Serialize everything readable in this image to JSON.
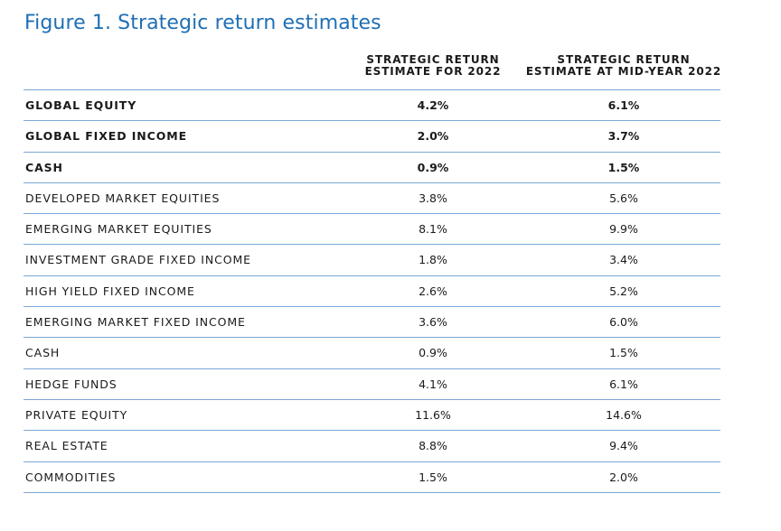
{
  "title": "Figure 1. Strategic return estimates",
  "columns": [
    {
      "line1": "STRATEGIC RETURN",
      "line2": "ESTIMATE FOR 2022"
    },
    {
      "line1": "STRATEGIC RETURN",
      "line2": "ESTIMATE AT MID-YEAR 2022"
    }
  ],
  "rows": [
    {
      "label": "GLOBAL EQUITY",
      "v1": "4.2%",
      "v2": "6.1%",
      "bold": true
    },
    {
      "label": "GLOBAL FIXED INCOME",
      "v1": "2.0%",
      "v2": "3.7%",
      "bold": true
    },
    {
      "label": "CASH",
      "v1": "0.9%",
      "v2": "1.5%",
      "bold": true
    },
    {
      "label": "DEVELOPED MARKET EQUITIES",
      "v1": "3.8%",
      "v2": "5.6%",
      "bold": false
    },
    {
      "label": "EMERGING MARKET EQUITIES",
      "v1": "8.1%",
      "v2": "9.9%",
      "bold": false
    },
    {
      "label": "INVESTMENT GRADE FIXED INCOME",
      "v1": "1.8%",
      "v2": "3.4%",
      "bold": false
    },
    {
      "label": "HIGH YIELD FIXED INCOME",
      "v1": "2.6%",
      "v2": "5.2%",
      "bold": false
    },
    {
      "label": "EMERGING MARKET FIXED INCOME",
      "v1": "3.6%",
      "v2": "6.0%",
      "bold": false
    },
    {
      "label": "CASH",
      "v1": "0.9%",
      "v2": "1.5%",
      "bold": false
    },
    {
      "label": "HEDGE FUNDS",
      "v1": "4.1%",
      "v2": "6.1%",
      "bold": false
    },
    {
      "label": "PRIVATE EQUITY",
      "v1": "11.6%",
      "v2": "14.6%",
      "bold": false
    },
    {
      "label": "REAL ESTATE",
      "v1": "8.8%",
      "v2": "9.4%",
      "bold": false
    },
    {
      "label": "COMMODITIES",
      "v1": "1.5%",
      "v2": "2.0%",
      "bold": false
    }
  ]
}
